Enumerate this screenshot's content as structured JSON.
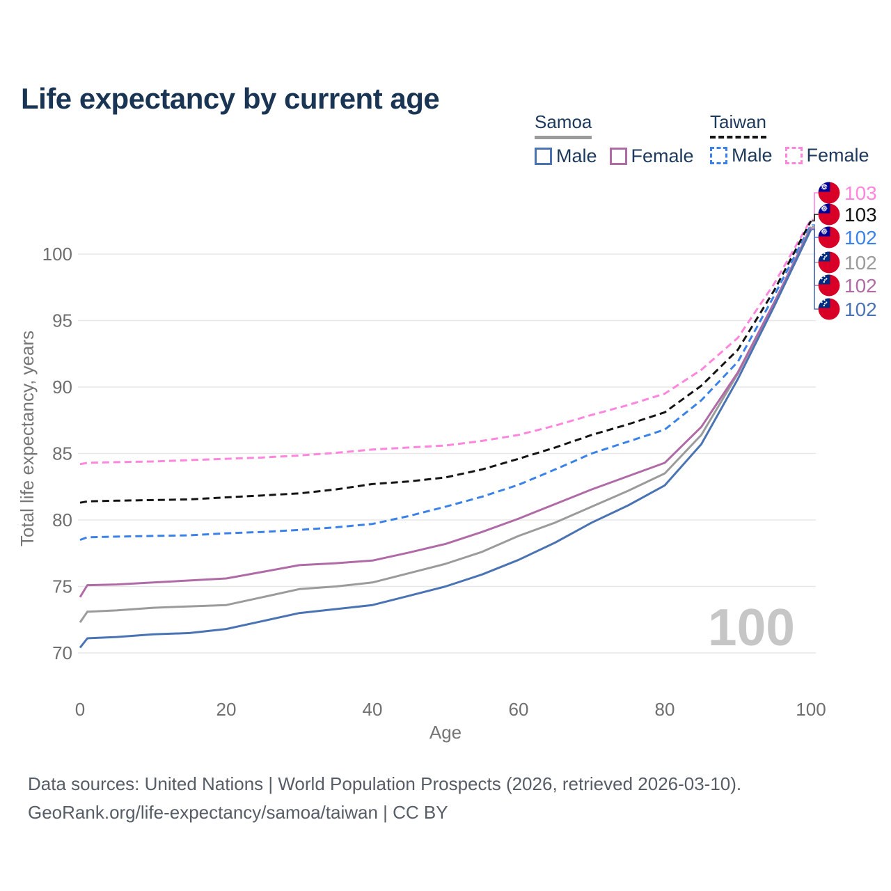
{
  "title": "Life expectancy by current age",
  "watermark": "100",
  "legend": {
    "groups": [
      {
        "name": "Samoa",
        "line_style": "solid",
        "header_line_color": "#9b9b9b",
        "items": [
          {
            "label": "Male",
            "color": "#4a73b3",
            "style": "solid"
          },
          {
            "label": "Female",
            "color": "#b06ba6",
            "style": "solid"
          }
        ]
      },
      {
        "name": "Taiwan",
        "line_style": "dashed",
        "header_line_color": "#141414",
        "items": [
          {
            "label": "Male",
            "color": "#3b82e8",
            "style": "dashed"
          },
          {
            "label": "Female",
            "color": "#ff85dd",
            "style": "dashed"
          }
        ]
      }
    ]
  },
  "chart_data": {
    "type": "line",
    "title": "Life expectancy by current age",
    "xlabel": "Age",
    "ylabel": "Total life expectancy, years",
    "x_ticks": [
      0,
      20,
      40,
      60,
      80,
      100
    ],
    "y_ticks": [
      70,
      75,
      80,
      85,
      90,
      95,
      100
    ],
    "xlim": [
      0,
      100
    ],
    "ylim": [
      69,
      104
    ],
    "grid": "horizontal-only",
    "legend_position": "top-right",
    "ages": [
      0,
      1,
      5,
      10,
      15,
      20,
      25,
      30,
      35,
      40,
      45,
      50,
      55,
      60,
      65,
      70,
      75,
      80,
      85,
      90,
      95,
      100
    ],
    "series": [
      {
        "name": "Taiwan — Female",
        "country": "Taiwan",
        "sex": "Female",
        "style": "dashed",
        "color": "#ff85dd",
        "end_label": "103",
        "flag": "taiwan",
        "values": [
          84.2,
          84.3,
          84.35,
          84.4,
          84.5,
          84.6,
          84.7,
          84.85,
          85.05,
          85.3,
          85.45,
          85.6,
          85.95,
          86.4,
          87.1,
          87.9,
          88.65,
          89.5,
          91.3,
          93.7,
          97.8,
          102.6
        ]
      },
      {
        "name": "Taiwan — Both sexes",
        "country": "Taiwan",
        "sex": "Both sexes",
        "style": "dashed",
        "color": "#141414",
        "end_label": "103",
        "flag": "taiwan",
        "values": [
          81.3,
          81.4,
          81.45,
          81.5,
          81.55,
          81.7,
          81.85,
          82.0,
          82.3,
          82.7,
          82.9,
          83.2,
          83.8,
          84.6,
          85.45,
          86.4,
          87.2,
          88.1,
          90.1,
          92.8,
          97.3,
          102.5
        ]
      },
      {
        "name": "Taiwan — Male",
        "country": "Taiwan",
        "sex": "Male",
        "style": "dashed",
        "color": "#3b82e8",
        "end_label": "102",
        "flag": "taiwan",
        "values": [
          78.5,
          78.7,
          78.75,
          78.8,
          78.85,
          79.0,
          79.1,
          79.25,
          79.45,
          79.7,
          80.3,
          81.0,
          81.75,
          82.65,
          83.8,
          85.0,
          85.9,
          86.8,
          89.0,
          91.9,
          96.9,
          102.2
        ]
      },
      {
        "name": "Samoa — Both sexes",
        "country": "Samoa",
        "sex": "Both sexes",
        "style": "solid",
        "color": "#9b9b9b",
        "end_label": "102",
        "flag": "samoa",
        "values": [
          72.3,
          73.1,
          73.2,
          73.4,
          73.5,
          73.6,
          74.2,
          74.8,
          75.0,
          75.3,
          76.0,
          76.7,
          77.6,
          78.8,
          79.8,
          81.0,
          82.2,
          83.5,
          86.4,
          91.0,
          96.3,
          102.05
        ]
      },
      {
        "name": "Samoa — Female",
        "country": "Samoa",
        "sex": "Female",
        "style": "solid",
        "color": "#b06ba6",
        "end_label": "102",
        "flag": "samoa",
        "values": [
          74.2,
          75.1,
          75.15,
          75.3,
          75.45,
          75.6,
          76.1,
          76.6,
          76.75,
          76.95,
          77.55,
          78.2,
          79.1,
          80.1,
          81.2,
          82.3,
          83.3,
          84.3,
          87.0,
          91.1,
          96.4,
          101.95
        ]
      },
      {
        "name": "Samoa — Male",
        "country": "Samoa",
        "sex": "Male",
        "style": "solid",
        "color": "#4a73b3",
        "end_label": "102",
        "flag": "samoa",
        "values": [
          70.4,
          71.1,
          71.2,
          71.4,
          71.5,
          71.8,
          72.4,
          73.0,
          73.3,
          73.6,
          74.3,
          75.0,
          75.9,
          77.0,
          78.3,
          79.8,
          81.1,
          82.6,
          85.7,
          90.6,
          96.1,
          101.85
        ]
      }
    ]
  },
  "footer": {
    "line1": "Data sources: United Nations | World Population Prospects (2026, retrieved 2026-03-10).",
    "line2": "GeoRank.org/life-expectancy/samoa/taiwan | CC BY"
  }
}
